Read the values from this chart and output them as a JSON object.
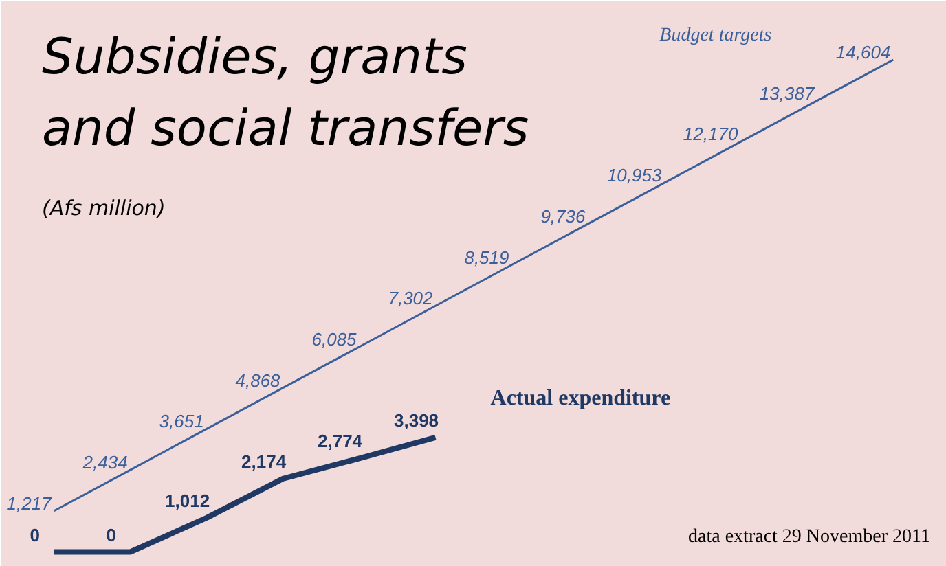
{
  "chart_data": {
    "type": "line",
    "title": "Subsidies, grants and social transfers",
    "subtitle": "(Afs million)",
    "categories": [
      null,
      null,
      null,
      null,
      null,
      null,
      null,
      null,
      null,
      null,
      null,
      null
    ],
    "series": [
      {
        "name": "Budget targets",
        "color": "#3a5f9a",
        "values": [
          1217,
          2434,
          3651,
          4868,
          6085,
          7302,
          8519,
          9736,
          10953,
          12170,
          13387,
          14604
        ],
        "value_labels": [
          "1,217",
          "2,434",
          "3,651",
          "4,868",
          "6,085",
          "7,302",
          "8,519",
          "9,736",
          "10,953",
          "12,170",
          "13,387",
          "14,604"
        ]
      },
      {
        "name": "Actual expenditure",
        "color": "#1f3864",
        "values": [
          0,
          0,
          1012,
          2174,
          2774,
          3398,
          null,
          null,
          null,
          null,
          null,
          null
        ],
        "value_labels": [
          "0",
          "0",
          "1,012",
          "2,174",
          "2,774",
          "3,398",
          null,
          null,
          null,
          null,
          null,
          null
        ]
      }
    ],
    "grid": false,
    "marker": "none",
    "line_style": "solid",
    "annotations": [
      "data extract 29 November 2011"
    ]
  }
}
